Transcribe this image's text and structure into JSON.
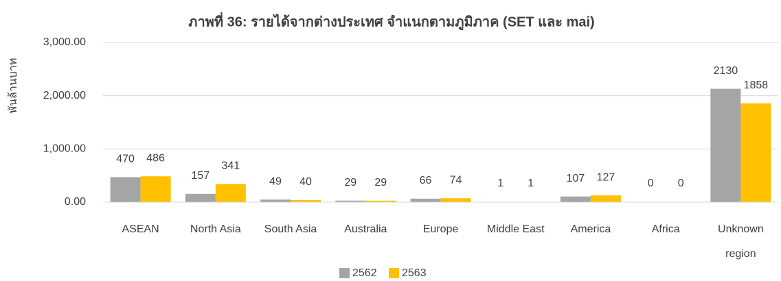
{
  "chart_data": {
    "type": "bar",
    "title": "ภาพที่ 36: รายได้จากต่างประเทศ จำแนกตามภูมิภาค (SET และ mai)",
    "y_label": "พันล้านบาท",
    "categories": [
      "ASEAN",
      "North Asia",
      "South Asia",
      "Australia",
      "Europe",
      "Middle East",
      "America",
      "Africa",
      "Unknown region"
    ],
    "series": [
      {
        "name": "2562",
        "color": "#a5a5a5",
        "values": [
          470,
          157,
          49,
          29,
          66,
          1,
          107,
          0,
          2130
        ]
      },
      {
        "name": "2563",
        "color": "#ffc000",
        "values": [
          486,
          341,
          40,
          29,
          74,
          1,
          127,
          0,
          1858
        ]
      }
    ],
    "ylim": [
      0,
      3000
    ],
    "yticks": [
      {
        "value": 0,
        "label": "0.00"
      },
      {
        "value": 1000,
        "label": "1,000.00"
      },
      {
        "value": 2000,
        "label": "2,000.00"
      },
      {
        "value": 3000,
        "label": "3,000.00"
      }
    ],
    "grid": true,
    "legend": "bottom"
  }
}
